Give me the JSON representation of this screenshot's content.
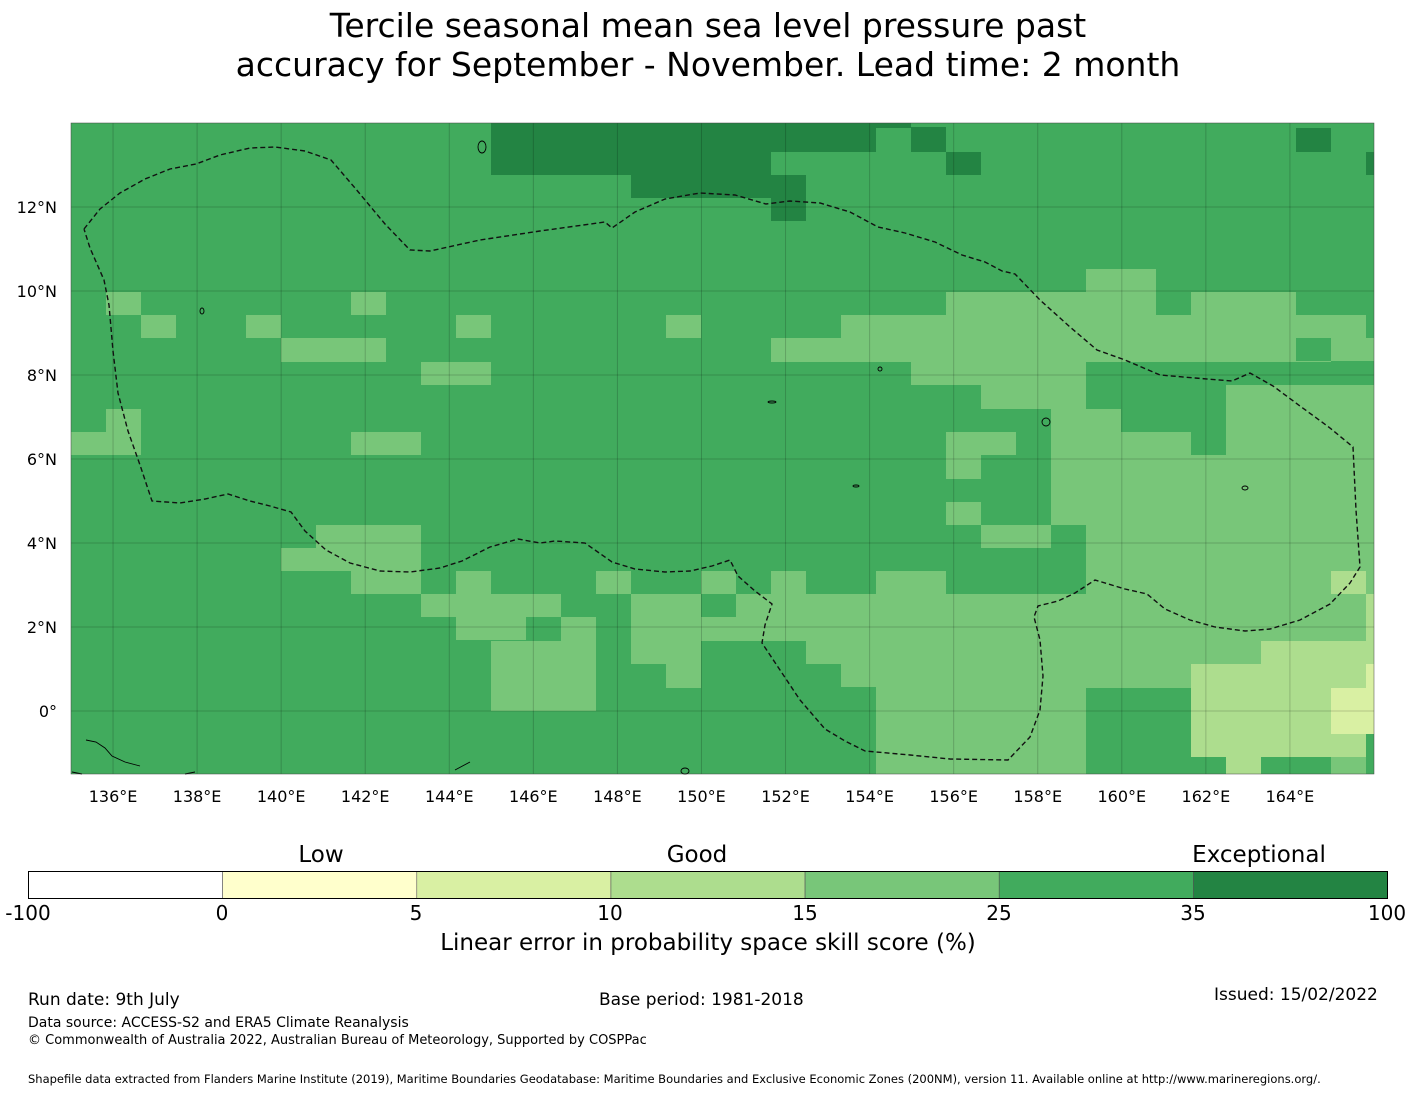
{
  "title": {
    "line1": "Tercile seasonal mean sea level pressure past",
    "line2": "accuracy for September - November. Lead time: 2 month"
  },
  "map": {
    "lon_range": [
      135,
      166
    ],
    "lat_range": [
      -1.5,
      14
    ],
    "x_ticks": [
      "136°E",
      "138°E",
      "140°E",
      "142°E",
      "144°E",
      "146°E",
      "148°E",
      "150°E",
      "152°E",
      "154°E",
      "156°E",
      "158°E",
      "160°E",
      "162°E",
      "164°E"
    ],
    "y_ticks": [
      "12°N",
      "10°N",
      "8°N",
      "6°N",
      "4°N",
      "2°N",
      "0°"
    ],
    "eez_boundary_style": "dashed black",
    "gridlines": true
  },
  "colorbar": {
    "categories": [
      {
        "label": "Low"
      },
      {
        "label": "Good"
      },
      {
        "label": "Exceptional"
      }
    ],
    "tick_labels": [
      "-100",
      "0",
      "5",
      "10",
      "15",
      "25",
      "35",
      "100"
    ],
    "colors": [
      "#ffffff",
      "#ffffcc",
      "#d9f0a3",
      "#addd8e",
      "#78c679",
      "#41ab5d",
      "#238443"
    ],
    "label": "Linear error in probability space skill score (%)"
  },
  "footer": {
    "run_date": "Run date: 9th July",
    "base_period": "Base period: 1981-2018",
    "issued": "Issued: 15/02/2022",
    "data_source": "Data source: ACCESS-S2 and ERA5 Climate Reanalysis",
    "copyright": "© Commonwealth of Australia 2022, Australian Bureau of Meteorology, Supported by COSPPac",
    "shapefile": "Shapefile data extracted from Flanders Marine Institute (2019), Maritime Boundaries Geodatabase: Maritime Boundaries and Exclusive Economic Zones (200NM), version 11. Available online at http://www.marineregions.org/."
  }
}
